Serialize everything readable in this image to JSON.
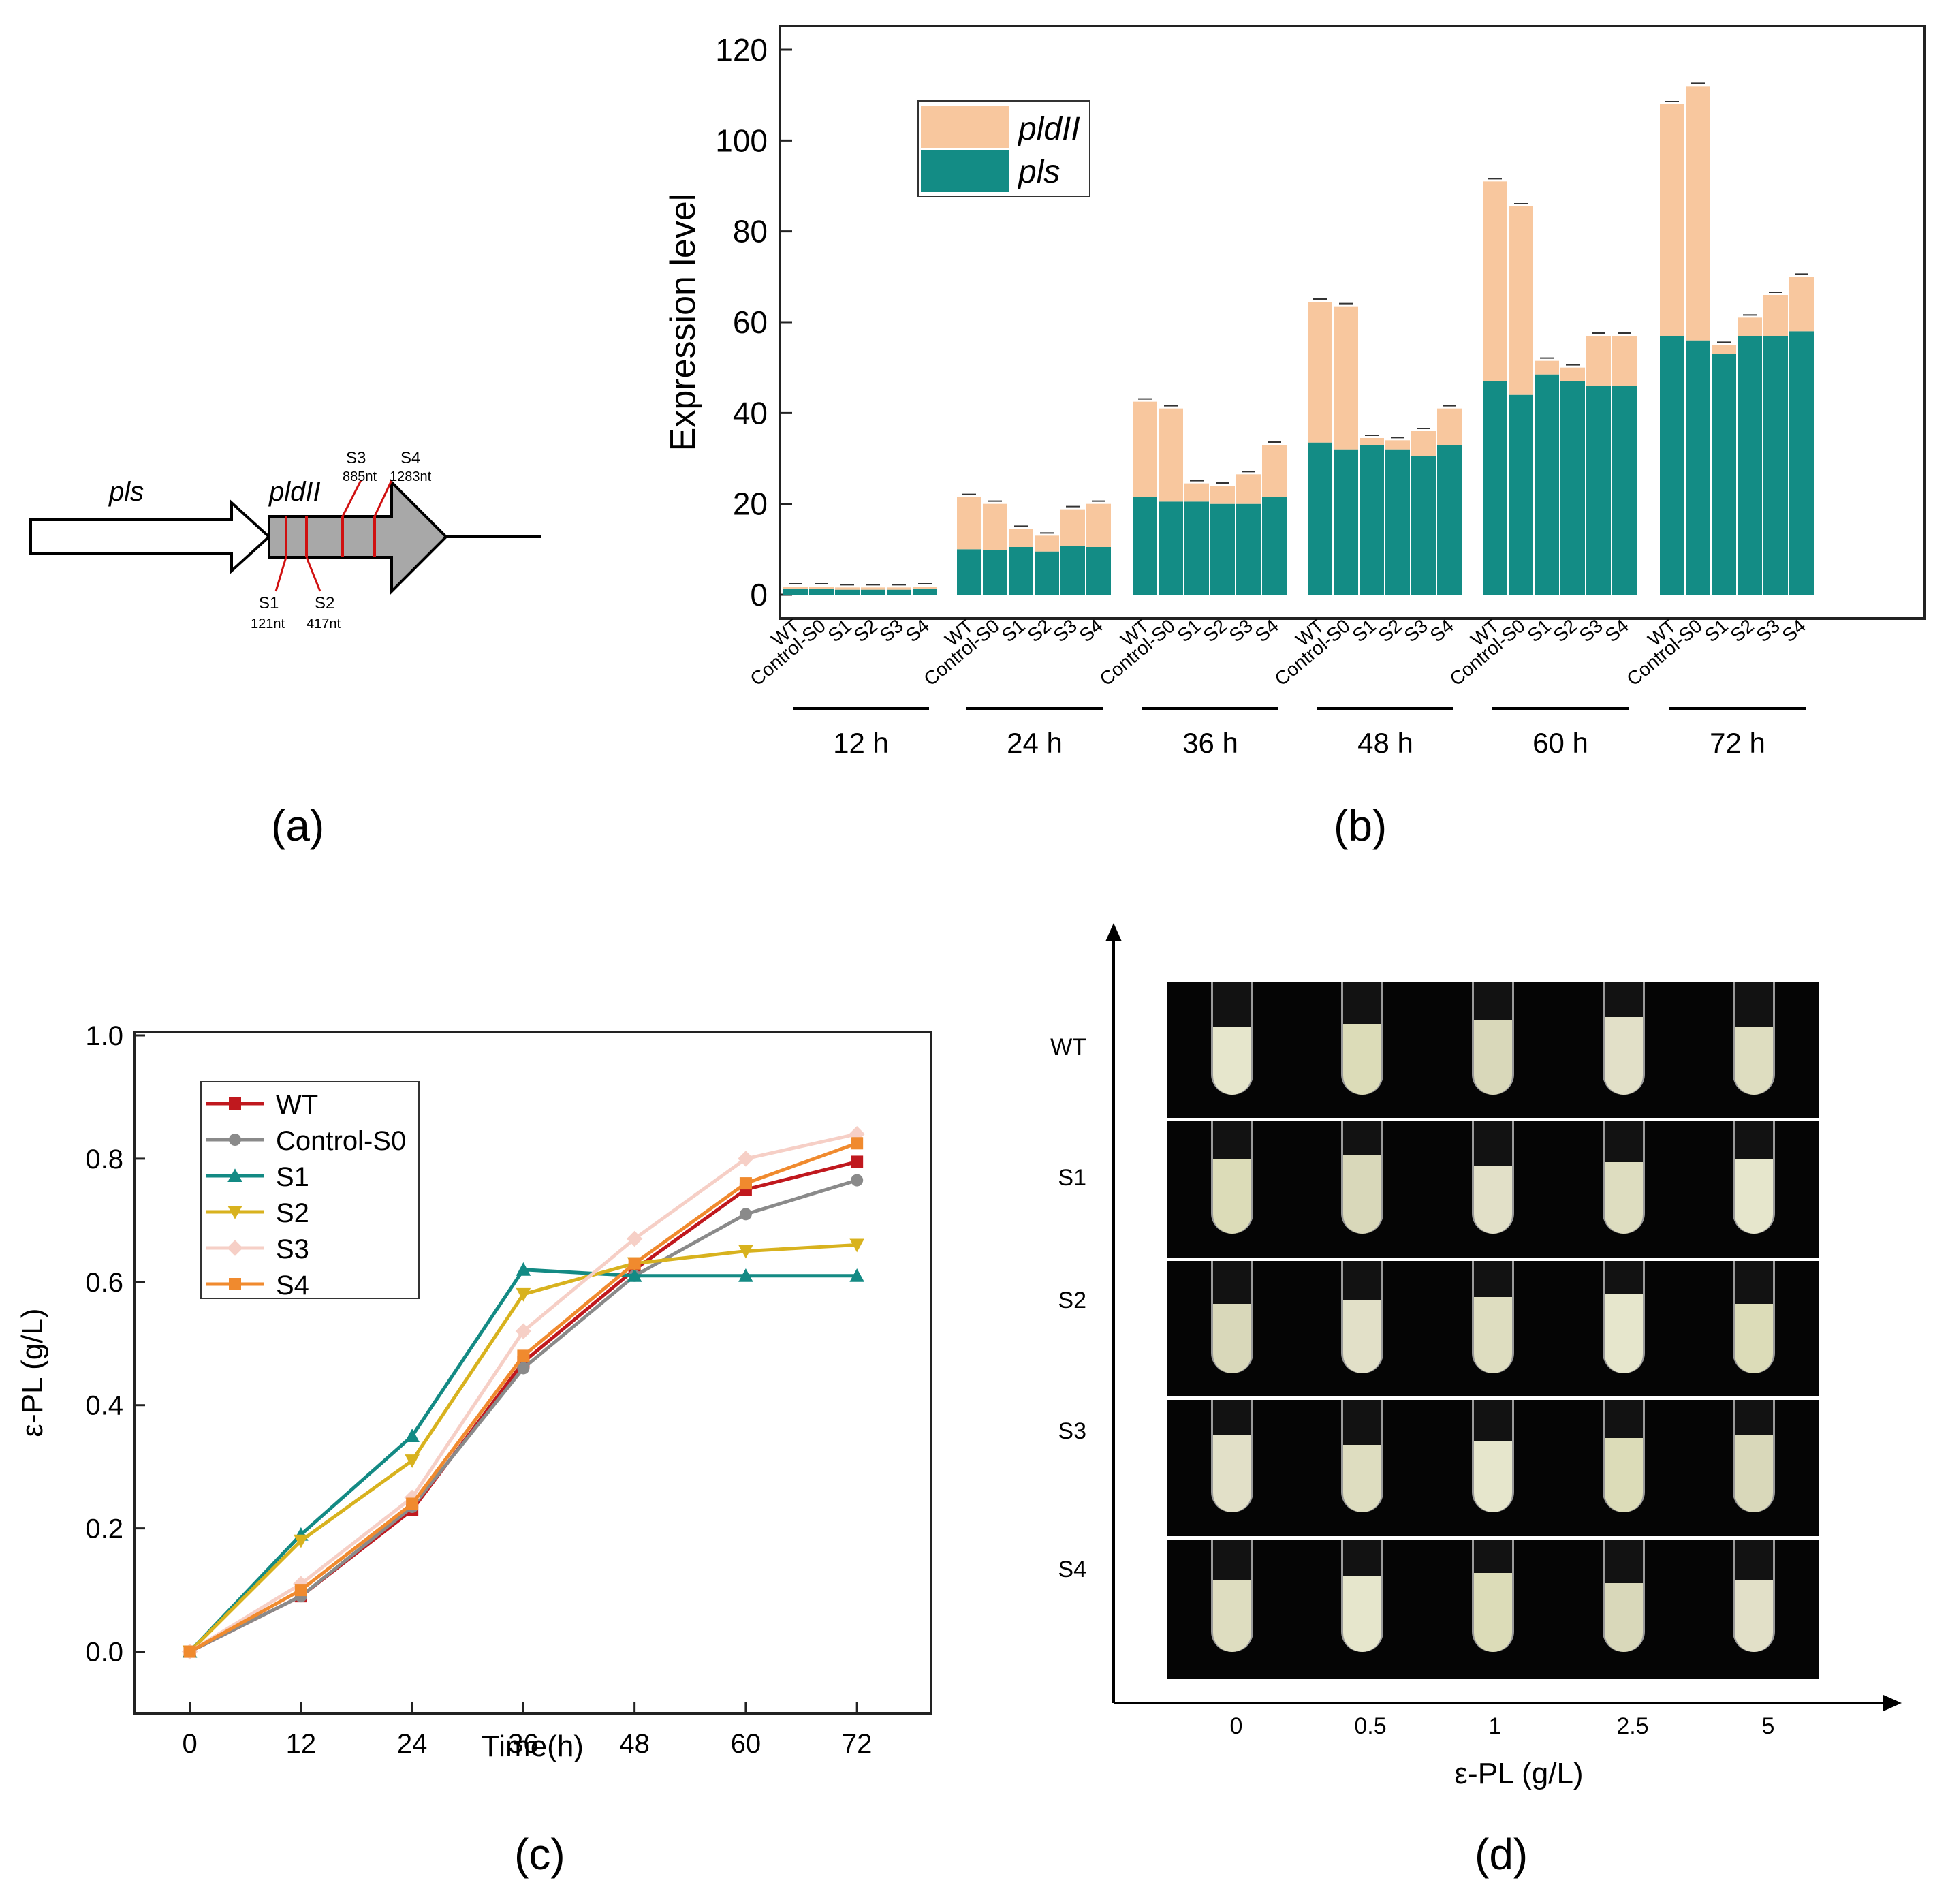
{
  "panels": {
    "a": "(a)",
    "b": "(b)",
    "c": "(c)",
    "d": "(d)"
  },
  "gene_map": {
    "genes": [
      "pls",
      "pldII"
    ],
    "sites": [
      {
        "name": "S1",
        "pos": "121nt"
      },
      {
        "name": "S2",
        "pos": "417nt"
      },
      {
        "name": "S3",
        "pos": "885nt"
      },
      {
        "name": "S4",
        "pos": "1283nt"
      }
    ]
  },
  "colors": {
    "pldII": "#f8c79e",
    "pls": "#138c85"
  },
  "chart_data": [
    {
      "type": "bar",
      "stacked": true,
      "title": "",
      "ylabel": "Expression level",
      "xlabel": "",
      "ylim": [
        0,
        120
      ],
      "yticks": [
        0,
        20,
        40,
        60,
        80,
        100,
        120
      ],
      "legend": [
        "pldII",
        "pls"
      ],
      "legend_position": "top-left",
      "strains": [
        "WT",
        "Control-S0",
        "S1",
        "S2",
        "S3",
        "S4"
      ],
      "groups": [
        {
          "label": "12 h",
          "pls": [
            1.2,
            1.2,
            1.1,
            1.1,
            1.1,
            1.2
          ],
          "pldII": [
            0.6,
            0.6,
            0.5,
            0.5,
            0.5,
            0.6
          ]
        },
        {
          "label": "24 h",
          "pls": [
            10,
            9.8,
            10.5,
            9.5,
            10.8,
            10.5
          ],
          "pldII": [
            11.5,
            10.2,
            4,
            3.5,
            8,
            9.5
          ]
        },
        {
          "label": "36 h",
          "pls": [
            21.5,
            20.5,
            20.5,
            20,
            20,
            21.5
          ],
          "pldII": [
            21,
            20.5,
            4,
            4,
            6.5,
            11.5
          ]
        },
        {
          "label": "48 h",
          "pls": [
            33.5,
            32,
            33,
            32,
            30.5,
            33
          ],
          "pldII": [
            31,
            31.5,
            1.5,
            2,
            5.5,
            8
          ]
        },
        {
          "label": "60 h",
          "pls": [
            47,
            44,
            48.5,
            47,
            46,
            46
          ],
          "pldII": [
            44,
            41.5,
            3,
            3,
            11,
            11
          ]
        },
        {
          "label": "72 h",
          "pls": [
            57,
            56,
            53,
            57,
            57,
            58
          ],
          "pldII": [
            51,
            56,
            2,
            4,
            9,
            12
          ]
        }
      ]
    },
    {
      "type": "line",
      "title": "",
      "xlabel": "Time(h)",
      "ylabel": "ε-PL (g/L)",
      "x": [
        0,
        12,
        24,
        36,
        48,
        60,
        72
      ],
      "xlim": [
        -6,
        80
      ],
      "ylim": [
        -0.1,
        1.0
      ],
      "xticks": [
        0,
        12,
        24,
        36,
        48,
        60,
        72
      ],
      "yticks": [
        "0.0",
        "0.2",
        "0.4",
        "0.6",
        "0.8",
        "1.0"
      ],
      "legend_position": "top-left",
      "series": [
        {
          "name": "WT",
          "color": "#c0181e",
          "marker": "square",
          "values": [
            0,
            0.09,
            0.23,
            0.47,
            0.62,
            0.75,
            0.795
          ]
        },
        {
          "name": "Control-S0",
          "color": "#8a8a8a",
          "marker": "circle",
          "values": [
            0,
            0.09,
            0.235,
            0.46,
            0.61,
            0.71,
            0.765
          ]
        },
        {
          "name": "S1",
          "color": "#138a84",
          "marker": "triangle-up",
          "values": [
            0,
            0.19,
            0.35,
            0.62,
            0.61,
            0.61,
            0.61
          ]
        },
        {
          "name": "S2",
          "color": "#d8b21e",
          "marker": "triangle-down",
          "values": [
            0,
            0.18,
            0.31,
            0.58,
            0.63,
            0.65,
            0.66
          ]
        },
        {
          "name": "S3",
          "color": "#f6cfc6",
          "marker": "diamond",
          "values": [
            0,
            0.11,
            0.25,
            0.52,
            0.67,
            0.8,
            0.84
          ]
        },
        {
          "name": "S4",
          "color": "#f08a2e",
          "marker": "square",
          "values": [
            0,
            0.1,
            0.24,
            0.48,
            0.63,
            0.76,
            0.825
          ]
        }
      ]
    },
    {
      "type": "table",
      "title": "",
      "xlabel": "ε-PL (g/L)",
      "rows": [
        "WT",
        "S1",
        "S2",
        "S3",
        "S4"
      ],
      "columns": [
        "0",
        "0.5",
        "1",
        "2.5",
        "5"
      ]
    }
  ]
}
